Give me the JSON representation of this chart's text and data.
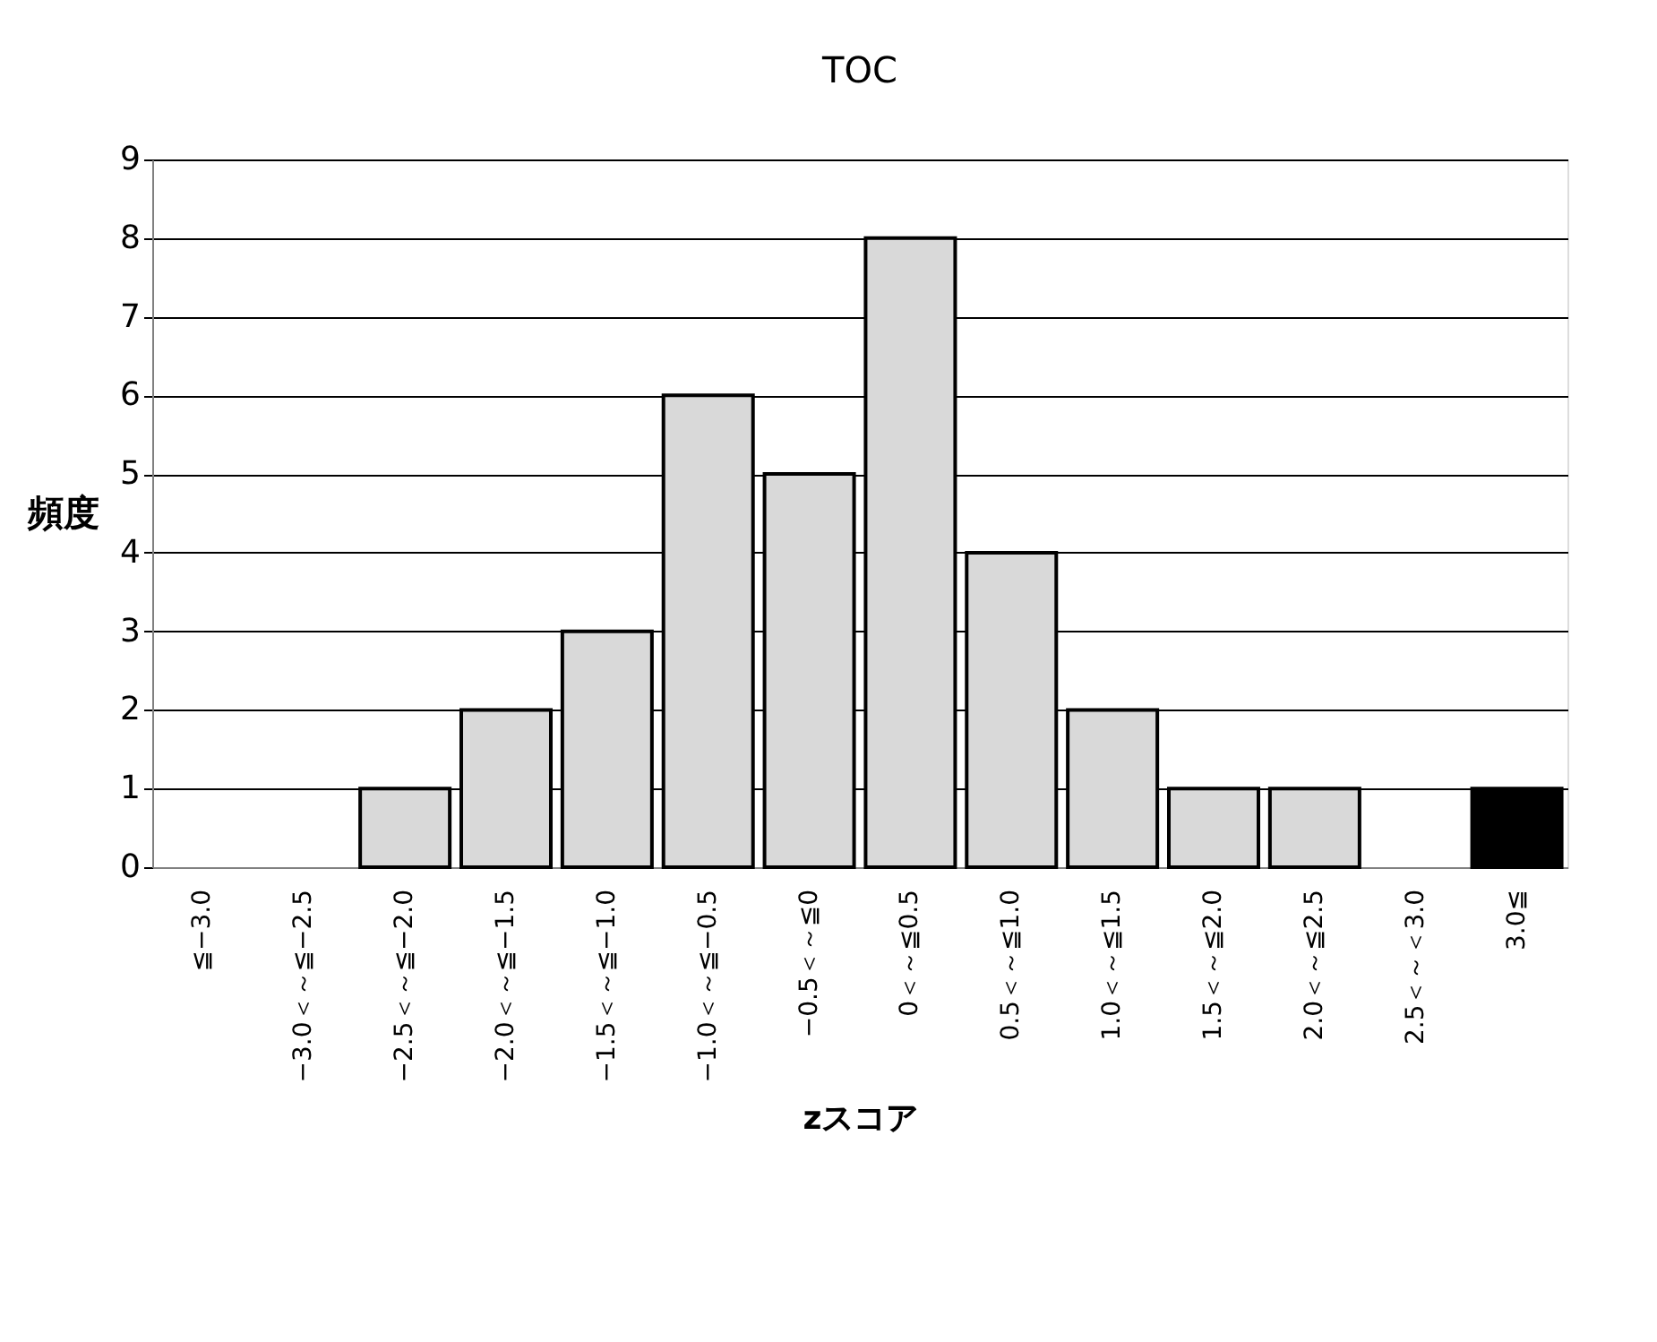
{
  "chart_data": {
    "type": "bar",
    "title": "TOC",
    "xlabel": "zスコア",
    "ylabel": "頻度",
    "categories": [
      "≦−3.0",
      "−3.0＜～≦−2.5",
      "−2.5＜～≦−2.0",
      "−2.0＜～≦−1.5",
      "−1.5＜～≦−1.0",
      "−1.0＜～≦−0.5",
      "−0.5＜～≦0",
      "0＜～≦0.5",
      "0.5＜～≦1.0",
      "1.0＜～≦1.5",
      "1.5＜～≦2.0",
      "2.0＜～≦2.5",
      "2.5＜～＜3.0",
      "3.0≦"
    ],
    "values": [
      0,
      0,
      1,
      2,
      3,
      6,
      5,
      8,
      4,
      2,
      1,
      1,
      0,
      1
    ],
    "colors": [
      "#d9d9d9",
      "#d9d9d9",
      "#d9d9d9",
      "#d9d9d9",
      "#d9d9d9",
      "#d9d9d9",
      "#d9d9d9",
      "#d9d9d9",
      "#d9d9d9",
      "#d9d9d9",
      "#d9d9d9",
      "#d9d9d9",
      "#d9d9d9",
      "#000000"
    ],
    "ylim": [
      0,
      9
    ],
    "yticks": [
      0,
      1,
      2,
      3,
      4,
      5,
      6,
      7,
      8,
      9
    ],
    "grid": "y",
    "legend": false
  }
}
